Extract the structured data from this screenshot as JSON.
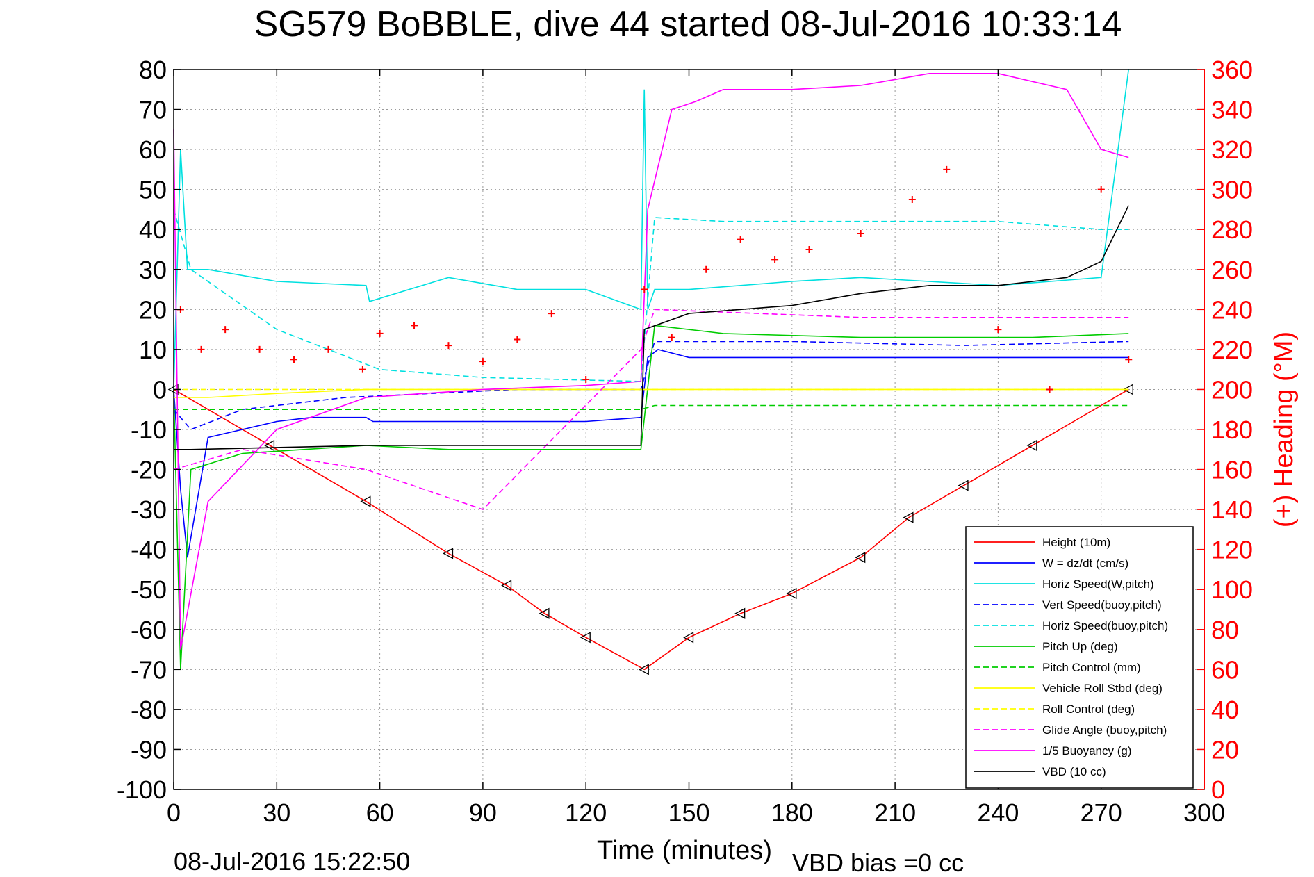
{
  "chart_data": {
    "type": "line",
    "title": "SG579 BoBBLE, dive 44 started 08-Jul-2016 10:33:14",
    "xlabel": "Time (minutes)",
    "ylabel": "",
    "y2label": "(+) Heading (°M)",
    "xlim": [
      0,
      300
    ],
    "ylim": [
      -100,
      80
    ],
    "y2lim": [
      0,
      360
    ],
    "xticks": [
      "0",
      "30",
      "60",
      "90",
      "120",
      "150",
      "180",
      "210",
      "240",
      "270",
      "300"
    ],
    "yticks": [
      "80",
      "70",
      "60",
      "50",
      "40",
      "30",
      "20",
      "10",
      "0",
      "-10",
      "-20",
      "-30",
      "-40",
      "-50",
      "-60",
      "-70",
      "-80",
      "-90",
      "-100"
    ],
    "y2ticks": [
      "360",
      "340",
      "320",
      "300",
      "280",
      "260",
      "240",
      "220",
      "200",
      "180",
      "160",
      "140",
      "120",
      "100",
      "80",
      "60",
      "40",
      "20",
      "0"
    ],
    "grid": true,
    "legend_position": "bottom-right",
    "footer_left": "08-Jul-2016 15:22:50",
    "footer_right": "VBD bias =0 cc",
    "series": [
      {
        "name": "Height (10m)",
        "color": "#ff0000",
        "style": "solid",
        "axis": "left",
        "x": [
          0,
          28,
          56,
          80,
          97,
          108,
          120,
          137,
          150,
          165,
          180,
          200,
          214,
          230,
          250,
          278
        ],
        "y": [
          0,
          -14,
          -28,
          -41,
          -49,
          -56,
          -62,
          -70,
          -62,
          -56,
          -51,
          -42,
          -32,
          -24,
          -14,
          0
        ]
      },
      {
        "name": "W = dz/dt (cm/s)",
        "color": "#0000ff",
        "style": "solid",
        "axis": "left",
        "x": [
          0,
          2,
          4,
          10,
          20,
          30,
          40,
          56,
          58,
          80,
          100,
          120,
          136,
          138,
          141,
          150,
          200,
          250,
          278
        ],
        "y": [
          0,
          -25,
          -42,
          -12,
          -10,
          -8,
          -7,
          -7,
          -8,
          -8,
          -8,
          -8,
          -7,
          8,
          10,
          8,
          8,
          8,
          8
        ]
      },
      {
        "name": "Horiz Speed(W,pitch)",
        "color": "#00e0e0",
        "style": "solid",
        "axis": "left",
        "x": [
          0,
          2,
          4,
          10,
          30,
          56,
          57,
          80,
          100,
          120,
          136,
          137,
          138,
          140,
          150,
          180,
          200,
          240,
          270,
          278
        ],
        "y": [
          0,
          60,
          30,
          30,
          27,
          26,
          22,
          28,
          25,
          25,
          20,
          75,
          20,
          25,
          25,
          27,
          28,
          26,
          28,
          80
        ]
      },
      {
        "name": "Vert Speed(buoy,pitch)",
        "color": "#0000ff",
        "style": "dashed",
        "axis": "left",
        "x": [
          0,
          5,
          20,
          50,
          100,
          136,
          140,
          180,
          230,
          278
        ],
        "y": [
          -5,
          -10,
          -5,
          -2,
          0,
          0,
          12,
          12,
          11,
          12
        ]
      },
      {
        "name": "Horiz Speed(buoy,pitch)",
        "color": "#00e0e0",
        "style": "dashed",
        "axis": "left",
        "x": [
          0,
          5,
          30,
          60,
          90,
          136,
          140,
          160,
          200,
          240,
          270,
          278
        ],
        "y": [
          45,
          30,
          15,
          5,
          3,
          2,
          43,
          42,
          42,
          42,
          40,
          40
        ]
      },
      {
        "name": "Pitch Up (deg)",
        "color": "#00cc00",
        "style": "solid",
        "axis": "left",
        "x": [
          0,
          2,
          5,
          20,
          56,
          80,
          100,
          136,
          140,
          160,
          200,
          250,
          278
        ],
        "y": [
          0,
          -70,
          -20,
          -16,
          -14,
          -15,
          -15,
          -15,
          16,
          14,
          13,
          13,
          14
        ]
      },
      {
        "name": "Pitch Control (mm)",
        "color": "#00cc00",
        "style": "dashed",
        "axis": "left",
        "x": [
          0,
          5,
          30,
          56,
          100,
          136,
          140,
          200,
          278
        ],
        "y": [
          -5,
          -5,
          -5,
          -5,
          -5,
          -5,
          -4,
          -4,
          -4
        ]
      },
      {
        "name": "Vehicle Roll Stbd (deg)",
        "color": "#ffff00",
        "style": "solid",
        "axis": "left",
        "x": [
          0,
          10,
          30,
          56,
          100,
          136,
          140,
          200,
          278
        ],
        "y": [
          -2,
          -2,
          -1,
          0,
          0,
          0,
          0,
          0,
          0
        ]
      },
      {
        "name": "Roll Control (deg)",
        "color": "#ffff00",
        "style": "dashed",
        "axis": "left",
        "x": [
          0,
          30,
          60,
          100,
          136,
          200,
          278
        ],
        "y": [
          0,
          0,
          0,
          0,
          0,
          0,
          0
        ]
      },
      {
        "name": "Glide Angle (buoy,pitch)",
        "color": "#ff00ff",
        "style": "dashed",
        "axis": "left",
        "x": [
          0,
          20,
          56,
          90,
          136,
          140,
          200,
          278
        ],
        "y": [
          -20,
          -15,
          -20,
          -30,
          10,
          20,
          18,
          18
        ]
      },
      {
        "name": "1/5 Buoyancy (g)",
        "color": "#ff00ff",
        "style": "solid",
        "axis": "left",
        "x": [
          0,
          2,
          10,
          30,
          56,
          90,
          120,
          136,
          138,
          145,
          152,
          160,
          180,
          200,
          220,
          240,
          260,
          270,
          278
        ],
        "y": [
          65,
          -65,
          -28,
          -10,
          -2,
          0,
          1,
          2,
          45,
          70,
          72,
          75,
          75,
          76,
          79,
          79,
          75,
          60,
          58
        ]
      },
      {
        "name": "VBD (10 cc)",
        "color": "#000000",
        "style": "solid",
        "axis": "left",
        "x": [
          0,
          5,
          56,
          100,
          136,
          137,
          150,
          180,
          200,
          220,
          240,
          260,
          270,
          278
        ],
        "y": [
          -15,
          -15,
          -14,
          -14,
          -14,
          15,
          19,
          21,
          24,
          26,
          26,
          28,
          32,
          46
        ]
      },
      {
        "name": "(+) Heading (°M)",
        "color": "#ff0000",
        "style": "markers",
        "axis": "right",
        "x": [
          2,
          8,
          15,
          25,
          35,
          45,
          55,
          60,
          70,
          80,
          90,
          100,
          110,
          120,
          137,
          145,
          155,
          165,
          175,
          185,
          200,
          215,
          225,
          240,
          255,
          270,
          278
        ],
        "y": [
          240,
          220,
          230,
          220,
          215,
          220,
          210,
          228,
          232,
          222,
          214,
          225,
          238,
          205,
          250,
          226,
          260,
          275,
          265,
          270,
          278,
          295,
          310,
          230,
          200,
          300,
          215
        ]
      }
    ]
  }
}
